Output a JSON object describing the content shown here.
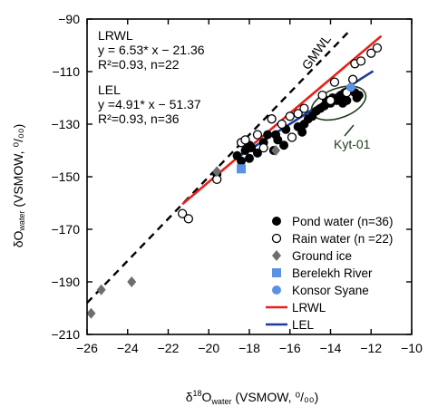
{
  "chart_data": {
    "type": "scatter",
    "xlabel": {
      "main": "δ",
      "sup": "18",
      "rest": "O",
      "sub": "water",
      "units": " (VSMOW, ⁰/₀₀)"
    },
    "ylabel": {
      "main": "δO",
      "sub": "water",
      "units": " (VSMOW, ⁰/₀₀)"
    },
    "xlim": [
      -26,
      -10
    ],
    "ylim": [
      -210,
      -90
    ],
    "xticks": [
      -26,
      -24,
      -22,
      -20,
      -18,
      -16,
      -14,
      -12,
      -10
    ],
    "yticks": [
      -90,
      -110,
      -130,
      -150,
      -170,
      -190,
      -210
    ],
    "xtick_labels": [
      "−26",
      "−24",
      "−22",
      "−20",
      "−18",
      "−16",
      "−14",
      "−12",
      "−10"
    ],
    "ytick_labels": [
      "−90",
      "−110",
      "−130",
      "−150",
      "−170",
      "−190",
      "−210"
    ],
    "annotations": {
      "lrwl_title": "LRWL",
      "lrwl_eq": "y = 6.53* x − 21.36",
      "lrwl_r2": "R²=0.93, n=22",
      "lel_title": "LEL",
      "lel_eq": "y =4.91* x − 51.37",
      "lel_r2": "R²=0.93, n=36",
      "gmwl": "GMWL",
      "kyt": "Kyt-01"
    },
    "lines": [
      {
        "name": "GMWL",
        "slope": 8,
        "intercept": 10,
        "x": [
          -26,
          -13
        ],
        "color": "#000000",
        "dash": true
      },
      {
        "name": "LRWL",
        "slope": 6.53,
        "intercept": -21.36,
        "x": [
          -21.3,
          -11.5
        ],
        "color": "#e8211b"
      },
      {
        "name": "LEL",
        "slope": 4.91,
        "intercept": -51.37,
        "x": [
          -18.6,
          -11.9
        ],
        "color": "#1a3a9c"
      }
    ],
    "series": [
      {
        "name": "Pond water (n=36)",
        "marker": "filled-circle",
        "color": "#000000",
        "points": [
          [
            -19.6,
            -149
          ],
          [
            -18.6,
            -142
          ],
          [
            -18.4,
            -144
          ],
          [
            -18.0,
            -143
          ],
          [
            -18.2,
            -140
          ],
          [
            -18.0,
            -138
          ],
          [
            -17.6,
            -141
          ],
          [
            -17.3,
            -137
          ],
          [
            -17.1,
            -134
          ],
          [
            -16.8,
            -140
          ],
          [
            -16.6,
            -136
          ],
          [
            -16.3,
            -138
          ],
          [
            -16.2,
            -132
          ],
          [
            -15.9,
            -135
          ],
          [
            -15.6,
            -131
          ],
          [
            -15.3,
            -130
          ],
          [
            -15.1,
            -128
          ],
          [
            -14.9,
            -127
          ],
          [
            -14.7,
            -125
          ],
          [
            -14.5,
            -124
          ],
          [
            -14.3,
            -123
          ],
          [
            -14.2,
            -121
          ],
          [
            -14.0,
            -122
          ],
          [
            -13.9,
            -120
          ],
          [
            -13.7,
            -121
          ],
          [
            -13.5,
            -119
          ],
          [
            -13.4,
            -122
          ],
          [
            -13.3,
            -118
          ],
          [
            -13.2,
            -121
          ],
          [
            -13.0,
            -117
          ],
          [
            -12.8,
            -118
          ],
          [
            -12.7,
            -120
          ],
          [
            -16.7,
            -134
          ],
          [
            -17.9,
            -139
          ],
          [
            -15.4,
            -133
          ],
          [
            -12.6,
            -119
          ]
        ]
      },
      {
        "name": "Rain water (n =22)",
        "marker": "open-circle",
        "color": "#000000",
        "points": [
          [
            -21.3,
            -164
          ],
          [
            -21.0,
            -166
          ],
          [
            -19.6,
            -151
          ],
          [
            -18.4,
            -137
          ],
          [
            -18.2,
            -136
          ],
          [
            -17.6,
            -134
          ],
          [
            -17.3,
            -139
          ],
          [
            -16.9,
            -128
          ],
          [
            -16.4,
            -130
          ],
          [
            -16.0,
            -127
          ],
          [
            -15.6,
            -126
          ],
          [
            -15.3,
            -124
          ],
          [
            -15.9,
            -135
          ],
          [
            -14.4,
            -119
          ],
          [
            -14.0,
            -121
          ],
          [
            -13.8,
            -114
          ],
          [
            -13.2,
            -118
          ],
          [
            -12.8,
            -107
          ],
          [
            -12.5,
            -106
          ],
          [
            -12.0,
            -103
          ],
          [
            -11.7,
            -101
          ],
          [
            -12.9,
            -113
          ]
        ]
      },
      {
        "name": "Ground ice",
        "marker": "diamond",
        "color": "#6e6e6e",
        "points": [
          [
            -25.8,
            -202
          ],
          [
            -25.3,
            -193
          ],
          [
            -23.8,
            -190
          ],
          [
            -19.6,
            -148
          ],
          [
            -16.7,
            -140
          ]
        ]
      },
      {
        "name": "Berelekh River",
        "marker": "square",
        "color": "#5b92e5",
        "points": [
          [
            -18.4,
            -147
          ]
        ]
      },
      {
        "name": "Konsor Syane",
        "marker": "circle",
        "color": "#5b92e5",
        "points": [
          [
            -13.0,
            -116
          ]
        ]
      }
    ],
    "legend": [
      {
        "label": "Pond water (n=36)",
        "type": "filled-circle",
        "color": "#000000"
      },
      {
        "label": "Rain water (n =22)",
        "type": "open-circle",
        "color": "#000000"
      },
      {
        "label": "Ground ice",
        "type": "diamond",
        "color": "#6e6e6e"
      },
      {
        "label": "Berelekh River",
        "type": "square",
        "color": "#5b92e5"
      },
      {
        "label": "Konsor Syane",
        "type": "circle",
        "color": "#5b92e5"
      },
      {
        "label": "LRWL",
        "type": "line",
        "color": "#e8211b"
      },
      {
        "label": "LEL",
        "type": "line",
        "color": "#1a3a9c"
      }
    ],
    "legend_position": "bottom-right",
    "ellipse": {
      "name": "Kyt-01",
      "cx": -13.6,
      "cy": -122,
      "rx": 1.4,
      "ry": 5.6,
      "color": "#1e3d1e"
    },
    "grid": false
  }
}
